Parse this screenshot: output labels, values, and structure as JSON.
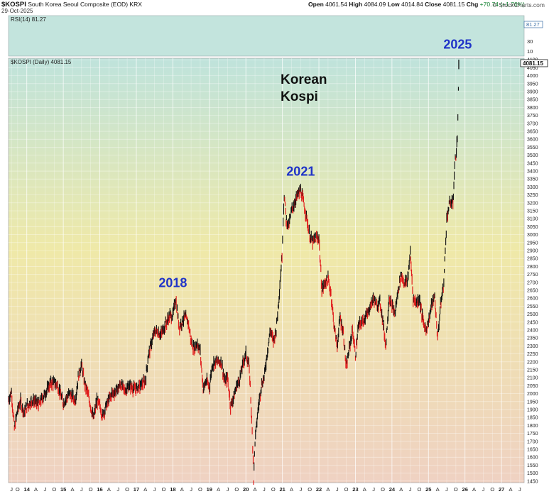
{
  "header": {
    "symbol": "$KOSPI",
    "description": "South Korea Seoul Composite (EOD)",
    "exchange": "KRX",
    "date": "29-Oct-2025",
    "source": "© StockCharts.com",
    "open_label": "Open",
    "open": "4061.54",
    "high_label": "High",
    "high": "4084.09",
    "low_label": "Low",
    "low": "4014.84",
    "close_label": "Close",
    "close": "4081.15",
    "chg_label": "Chg",
    "chg": "+70.74 (+1.76%)"
  },
  "rsi_panel": {
    "label": "RSI(14) 81.27",
    "value": 81.27,
    "value_label": "81.27",
    "ticks": [
      "30",
      "10"
    ]
  },
  "price_panel": {
    "label": "$KOSPI (Daily) 4081.15",
    "last_value_label": "4081.15"
  },
  "colors": {
    "up": "#111111",
    "down": "#e01a1a",
    "annotation": "#1f33c8",
    "bg_top": "#bfe3dc",
    "bg_mid": "#efe9a8",
    "bg_bottom": "#efd1c2"
  },
  "chart_data": {
    "type": "line",
    "series": [
      {
        "values": [
          [
            2013.5,
            1960
          ],
          [
            2013.58,
            2010
          ],
          [
            2013.66,
            1780
          ],
          [
            2013.75,
            1900
          ],
          [
            2013.83,
            1950
          ],
          [
            2013.92,
            1880
          ],
          [
            2014.0,
            1920
          ],
          [
            2014.17,
            1960
          ],
          [
            2014.33,
            1930
          ],
          [
            2014.5,
            2000
          ],
          [
            2014.67,
            2070
          ],
          [
            2014.83,
            2060
          ],
          [
            2015.0,
            1940
          ],
          [
            2015.17,
            2000
          ],
          [
            2015.33,
            1960
          ],
          [
            2015.42,
            2120
          ],
          [
            2015.5,
            2180
          ],
          [
            2015.58,
            2070
          ],
          [
            2015.67,
            2000
          ],
          [
            2015.83,
            1840
          ],
          [
            2015.92,
            1960
          ],
          [
            2016.0,
            1920
          ],
          [
            2016.08,
            1860
          ],
          [
            2016.17,
            1920
          ],
          [
            2016.33,
            2000
          ],
          [
            2016.42,
            2010
          ],
          [
            2016.58,
            2060
          ],
          [
            2016.67,
            2020
          ],
          [
            2016.83,
            2050
          ],
          [
            2016.92,
            2030
          ],
          [
            2017.0,
            2030
          ],
          [
            2017.17,
            2060
          ],
          [
            2017.25,
            2080
          ],
          [
            2017.33,
            2240
          ],
          [
            2017.42,
            2320
          ],
          [
            2017.5,
            2390
          ],
          [
            2017.58,
            2390
          ],
          [
            2017.67,
            2370
          ],
          [
            2017.83,
            2450
          ],
          [
            2017.92,
            2490
          ],
          [
            2018.0,
            2490
          ],
          [
            2018.08,
            2600
          ],
          [
            2018.17,
            2420
          ],
          [
            2018.33,
            2480
          ],
          [
            2018.42,
            2450
          ],
          [
            2018.5,
            2330
          ],
          [
            2018.58,
            2280
          ],
          [
            2018.67,
            2320
          ],
          [
            2018.75,
            2260
          ],
          [
            2018.83,
            2030
          ],
          [
            2018.92,
            2080
          ],
          [
            2019.0,
            2040
          ],
          [
            2019.08,
            2180
          ],
          [
            2019.17,
            2200
          ],
          [
            2019.33,
            2200
          ],
          [
            2019.42,
            2070
          ],
          [
            2019.5,
            2100
          ],
          [
            2019.58,
            1920
          ],
          [
            2019.67,
            1980
          ],
          [
            2019.75,
            2050
          ],
          [
            2019.83,
            2090
          ],
          [
            2019.92,
            2190
          ],
          [
            2020.0,
            2250
          ],
          [
            2020.08,
            2180
          ],
          [
            2020.12,
            2050
          ],
          [
            2020.2,
            1600
          ],
          [
            2020.21,
            1457
          ],
          [
            2020.25,
            1700
          ],
          [
            2020.33,
            1890
          ],
          [
            2020.42,
            2050
          ],
          [
            2020.5,
            2100
          ],
          [
            2020.58,
            2250
          ],
          [
            2020.67,
            2400
          ],
          [
            2020.75,
            2330
          ],
          [
            2020.83,
            2400
          ],
          [
            2020.92,
            2650
          ],
          [
            2020.99,
            2870
          ],
          [
            2021.02,
            3100
          ],
          [
            2021.05,
            3250
          ],
          [
            2021.1,
            3100
          ],
          [
            2021.17,
            3050
          ],
          [
            2021.25,
            3150
          ],
          [
            2021.33,
            3200
          ],
          [
            2021.42,
            3250
          ],
          [
            2021.5,
            3280
          ],
          [
            2021.58,
            3200
          ],
          [
            2021.67,
            3100
          ],
          [
            2021.75,
            2990
          ],
          [
            2021.83,
            2950
          ],
          [
            2021.92,
            2980
          ],
          [
            2022.0,
            2980
          ],
          [
            2022.08,
            2650
          ],
          [
            2022.17,
            2700
          ],
          [
            2022.25,
            2720
          ],
          [
            2022.33,
            2630
          ],
          [
            2022.42,
            2420
          ],
          [
            2022.5,
            2300
          ],
          [
            2022.58,
            2480
          ],
          [
            2022.67,
            2380
          ],
          [
            2022.75,
            2160
          ],
          [
            2022.83,
            2280
          ],
          [
            2022.92,
            2400
          ],
          [
            2023.0,
            2240
          ],
          [
            2023.08,
            2420
          ],
          [
            2023.17,
            2450
          ],
          [
            2023.33,
            2500
          ],
          [
            2023.42,
            2560
          ],
          [
            2023.5,
            2600
          ],
          [
            2023.58,
            2550
          ],
          [
            2023.67,
            2580
          ],
          [
            2023.75,
            2460
          ],
          [
            2023.83,
            2300
          ],
          [
            2023.92,
            2600
          ],
          [
            2024.0,
            2550
          ],
          [
            2024.08,
            2500
          ],
          [
            2024.17,
            2650
          ],
          [
            2024.25,
            2750
          ],
          [
            2024.33,
            2700
          ],
          [
            2024.42,
            2700
          ],
          [
            2024.5,
            2880
          ],
          [
            2024.55,
            2720
          ],
          [
            2024.58,
            2600
          ],
          [
            2024.67,
            2570
          ],
          [
            2024.75,
            2600
          ],
          [
            2024.83,
            2480
          ],
          [
            2024.92,
            2400
          ],
          [
            2025.0,
            2450
          ],
          [
            2025.08,
            2550
          ],
          [
            2025.17,
            2610
          ],
          [
            2025.25,
            2350
          ],
          [
            2025.33,
            2550
          ],
          [
            2025.42,
            2700
          ],
          [
            2025.46,
            2900
          ],
          [
            2025.5,
            3100
          ],
          [
            2025.58,
            3200
          ],
          [
            2025.67,
            3200
          ],
          [
            2025.72,
            3430
          ],
          [
            2025.75,
            3500
          ],
          [
            2025.79,
            3600
          ],
          [
            2025.82,
            3900
          ],
          [
            2025.83,
            4081
          ]
        ]
      }
    ],
    "x_ticks": [
      {
        "x": 2013.58,
        "label": "J"
      },
      {
        "x": 2013.75,
        "label": "O"
      },
      {
        "x": 2014.0,
        "label": "14"
      },
      {
        "x": 2014.25,
        "label": "A"
      },
      {
        "x": 2014.5,
        "label": "J"
      },
      {
        "x": 2014.75,
        "label": "O"
      },
      {
        "x": 2015.0,
        "label": "15"
      },
      {
        "x": 2015.25,
        "label": "A"
      },
      {
        "x": 2015.5,
        "label": "J"
      },
      {
        "x": 2015.75,
        "label": "O"
      },
      {
        "x": 2016.0,
        "label": "16"
      },
      {
        "x": 2016.25,
        "label": "A"
      },
      {
        "x": 2016.5,
        "label": "J"
      },
      {
        "x": 2016.75,
        "label": "O"
      },
      {
        "x": 2017.0,
        "label": "17"
      },
      {
        "x": 2017.25,
        "label": "A"
      },
      {
        "x": 2017.5,
        "label": "J"
      },
      {
        "x": 2017.75,
        "label": "O"
      },
      {
        "x": 2018.0,
        "label": "18"
      },
      {
        "x": 2018.25,
        "label": "A"
      },
      {
        "x": 2018.5,
        "label": "J"
      },
      {
        "x": 2018.75,
        "label": "O"
      },
      {
        "x": 2019.0,
        "label": "19"
      },
      {
        "x": 2019.25,
        "label": "A"
      },
      {
        "x": 2019.5,
        "label": "J"
      },
      {
        "x": 2019.75,
        "label": "O"
      },
      {
        "x": 2020.0,
        "label": "20"
      },
      {
        "x": 2020.25,
        "label": "A"
      },
      {
        "x": 2020.5,
        "label": "J"
      },
      {
        "x": 2020.75,
        "label": "O"
      },
      {
        "x": 2021.0,
        "label": "21"
      },
      {
        "x": 2021.25,
        "label": "A"
      },
      {
        "x": 2021.5,
        "label": "J"
      },
      {
        "x": 2021.75,
        "label": "O"
      },
      {
        "x": 2022.0,
        "label": "22"
      },
      {
        "x": 2022.25,
        "label": "A"
      },
      {
        "x": 2022.5,
        "label": "J"
      },
      {
        "x": 2022.75,
        "label": "O"
      },
      {
        "x": 2023.0,
        "label": "23"
      },
      {
        "x": 2023.25,
        "label": "A"
      },
      {
        "x": 2023.5,
        "label": "J"
      },
      {
        "x": 2023.75,
        "label": "O"
      },
      {
        "x": 2024.0,
        "label": "24"
      },
      {
        "x": 2024.25,
        "label": "A"
      },
      {
        "x": 2024.5,
        "label": "J"
      },
      {
        "x": 2024.75,
        "label": "O"
      },
      {
        "x": 2025.0,
        "label": "25"
      },
      {
        "x": 2025.25,
        "label": "A"
      },
      {
        "x": 2025.5,
        "label": "J"
      },
      {
        "x": 2025.75,
        "label": "O"
      },
      {
        "x": 2026.0,
        "label": "26"
      },
      {
        "x": 2026.25,
        "label": "A"
      },
      {
        "x": 2026.5,
        "label": "J"
      },
      {
        "x": 2026.75,
        "label": "O"
      },
      {
        "x": 2027.0,
        "label": "27"
      },
      {
        "x": 2027.25,
        "label": "A"
      },
      {
        "x": 2027.5,
        "label": "J"
      }
    ],
    "xlim": [
      2013.5,
      2027.62
    ],
    "ylim": [
      1440,
      4110
    ],
    "y_ticks": [
      1450,
      1500,
      1550,
      1600,
      1650,
      1700,
      1750,
      1800,
      1850,
      1900,
      1950,
      2000,
      2050,
      2100,
      2150,
      2200,
      2250,
      2300,
      2350,
      2400,
      2450,
      2500,
      2550,
      2600,
      2650,
      2700,
      2750,
      2800,
      2850,
      2900,
      2950,
      3000,
      3050,
      3100,
      3150,
      3200,
      3250,
      3300,
      3350,
      3400,
      3450,
      3500,
      3550,
      3600,
      3650,
      3700,
      3750,
      3800,
      3850,
      3900,
      3950,
      4000,
      4050,
      4100
    ],
    "annotations": [
      {
        "x": 2018.0,
        "y": 2670,
        "text": "2018"
      },
      {
        "x": 2021.5,
        "y": 3370,
        "text": "2021"
      },
      {
        "x": 2025.8,
        "y": 4170,
        "text": "2025"
      },
      {
        "x": 2020.95,
        "y": 3950,
        "text": "Korean\nKospi"
      }
    ],
    "grid": true
  }
}
